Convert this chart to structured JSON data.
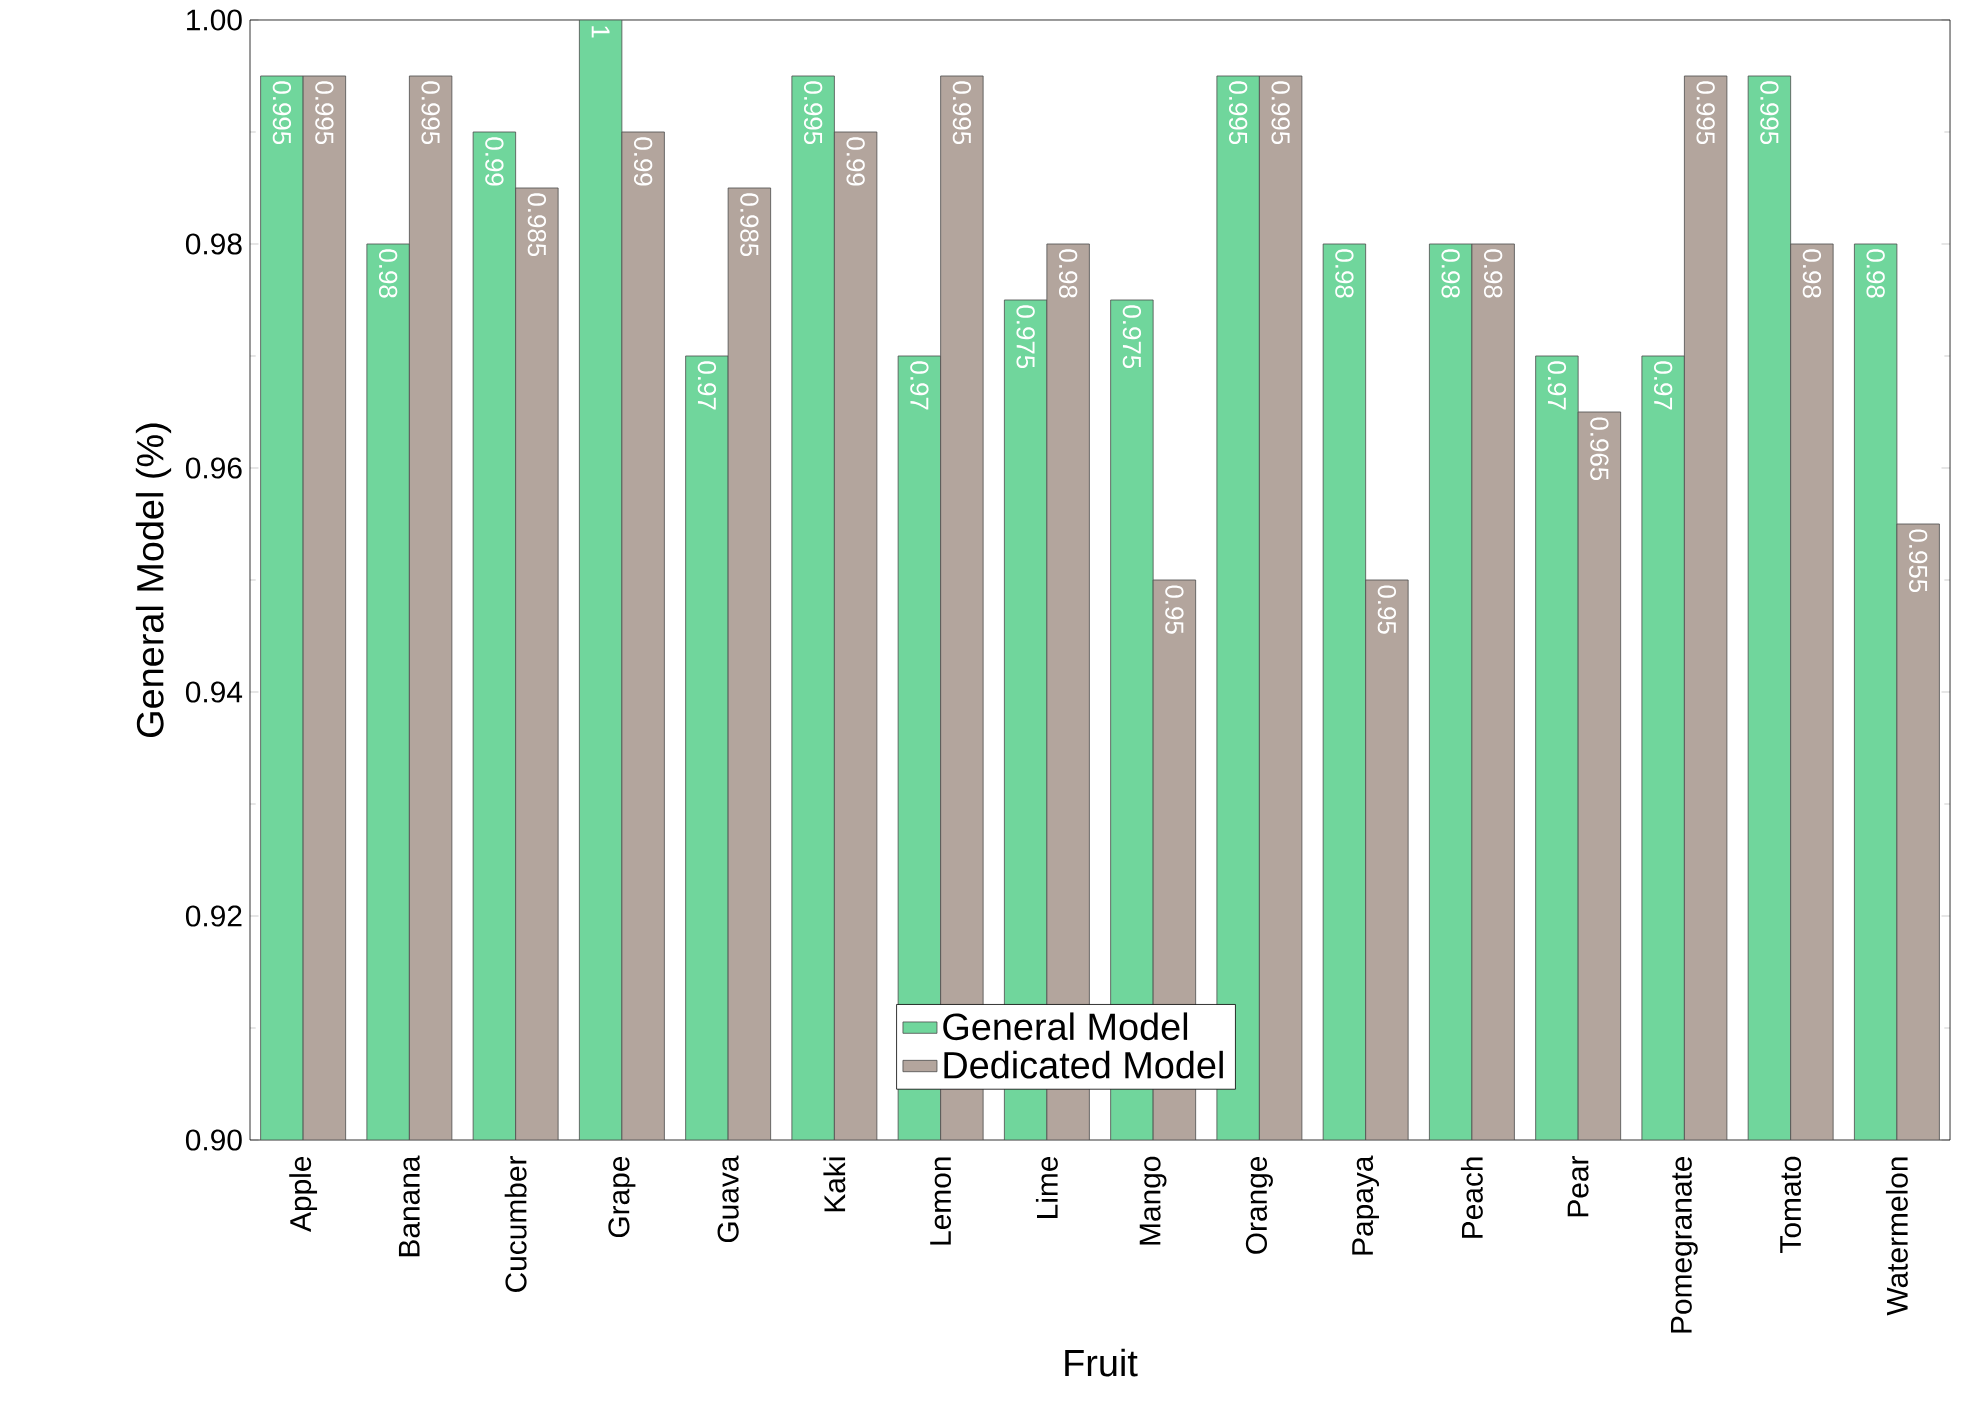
{
  "chart_data": {
    "type": "bar",
    "xlabel": "Fruit",
    "ylabel": "General Model (%)",
    "categories": [
      "Apple",
      "Banana",
      "Cucumber",
      "Grape",
      "Guava",
      "Kaki",
      "Lemon",
      "Lime",
      "Mango",
      "Orange",
      "Papaya",
      "Peach",
      "Pear",
      "Pomegranate",
      "Tomato",
      "Watermelon"
    ],
    "series": [
      {
        "name": "General Model",
        "color": "#70d69c",
        "values": [
          0.995,
          0.98,
          0.99,
          1,
          0.97,
          0.995,
          0.97,
          0.975,
          0.975,
          0.995,
          0.98,
          0.98,
          0.97,
          0.97,
          0.995,
          0.98
        ],
        "value_labels": [
          "0.995",
          "0.98",
          "0.99",
          "1",
          "0.97",
          "0.995",
          "0.97",
          "0.975",
          "0.975",
          "0.995",
          "0.98",
          "0.98",
          "0.97",
          "0.97",
          "0.995",
          "0.98"
        ]
      },
      {
        "name": "Dedicated Model",
        "color": "#b3a59d",
        "values": [
          0.995,
          0.995,
          0.985,
          0.99,
          0.985,
          0.99,
          0.995,
          0.98,
          0.95,
          0.995,
          0.95,
          0.98,
          0.965,
          0.995,
          0.98,
          0.955
        ],
        "value_labels": [
          "0.995",
          "0.995",
          "0.985",
          "0.99",
          "0.985",
          "0.99",
          "0.995",
          "0.98",
          "0.95",
          "0.995",
          "0.95",
          "0.98",
          "0.965",
          "0.995",
          "0.98",
          "0.955"
        ]
      }
    ],
    "ylim": [
      0.9,
      1.0
    ],
    "yticks": [
      {
        "value": 0.9,
        "label": "0.90"
      },
      {
        "value": 0.92,
        "label": "0.92"
      },
      {
        "value": 0.94,
        "label": "0.94"
      },
      {
        "value": 0.96,
        "label": "0.96"
      },
      {
        "value": 0.98,
        "label": "0.98"
      },
      {
        "value": 1.0,
        "label": "1.00"
      }
    ],
    "legend": "bottom",
    "grid": false
  }
}
